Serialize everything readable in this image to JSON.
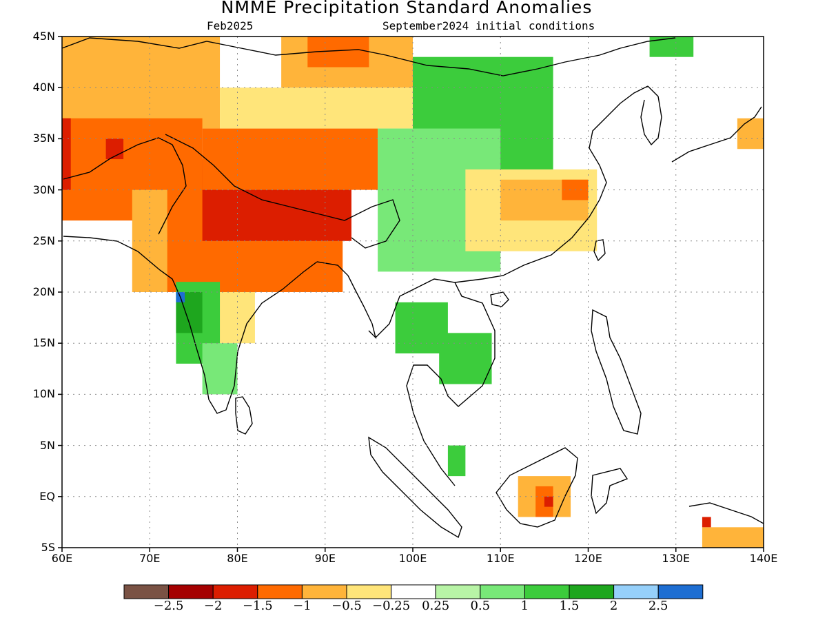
{
  "title": "NMME Precipitation Standard Anomalies",
  "valid_month": "Feb2025",
  "initial_conditions": "September2024 initial conditions",
  "map": {
    "lon_range": [
      60,
      140
    ],
    "lat_range": [
      -5,
      45
    ],
    "lat_ticks": [
      {
        "value": 45,
        "label": "45N"
      },
      {
        "value": 40,
        "label": "40N"
      },
      {
        "value": 35,
        "label": "35N"
      },
      {
        "value": 30,
        "label": "30N"
      },
      {
        "value": 25,
        "label": "25N"
      },
      {
        "value": 20,
        "label": "20N"
      },
      {
        "value": 15,
        "label": "15N"
      },
      {
        "value": 10,
        "label": "10N"
      },
      {
        "value": 5,
        "label": "5N"
      },
      {
        "value": 0,
        "label": "EQ"
      },
      {
        "value": -5,
        "label": "5S"
      }
    ],
    "lon_ticks": [
      {
        "value": 60,
        "label": "60E"
      },
      {
        "value": 70,
        "label": "70E"
      },
      {
        "value": 80,
        "label": "80E"
      },
      {
        "value": 90,
        "label": "90E"
      },
      {
        "value": 100,
        "label": "100E"
      },
      {
        "value": 110,
        "label": "110E"
      },
      {
        "value": 120,
        "label": "120E"
      },
      {
        "value": 130,
        "label": "130E"
      },
      {
        "value": 140,
        "label": "140E"
      }
    ],
    "anomaly_regions": [
      {
        "value": -1.0,
        "lon": [
          60,
          78
        ],
        "lat": [
          36,
          45
        ]
      },
      {
        "value": -1.5,
        "lon": [
          60,
          76
        ],
        "lat": [
          27,
          37
        ]
      },
      {
        "value": -2.0,
        "lon": [
          65,
          67
        ],
        "lat": [
          33,
          35
        ]
      },
      {
        "value": -2.0,
        "lon": [
          60,
          61
        ],
        "lat": [
          30,
          37
        ]
      },
      {
        "value": -1.0,
        "lon": [
          68,
          80
        ],
        "lat": [
          20,
          30
        ]
      },
      {
        "value": -1.5,
        "lon": [
          72,
          92
        ],
        "lat": [
          20,
          32
        ]
      },
      {
        "value": -2.0,
        "lon": [
          76,
          93
        ],
        "lat": [
          25,
          33
        ]
      },
      {
        "value": -1.5,
        "lon": [
          76,
          96
        ],
        "lat": [
          30,
          36
        ]
      },
      {
        "value": -0.5,
        "lon": [
          78,
          100
        ],
        "lat": [
          36,
          40
        ]
      },
      {
        "value": -1.0,
        "lon": [
          85,
          100
        ],
        "lat": [
          40,
          45
        ]
      },
      {
        "value": -1.5,
        "lon": [
          88,
          95
        ],
        "lat": [
          42,
          45
        ]
      },
      {
        "value": -0.5,
        "lon": [
          76,
          82
        ],
        "lat": [
          15,
          20
        ]
      },
      {
        "value": 1.0,
        "lon": [
          73,
          78
        ],
        "lat": [
          13,
          21
        ]
      },
      {
        "value": 1.5,
        "lon": [
          73,
          76
        ],
        "lat": [
          16,
          20
        ]
      },
      {
        "value": 2.5,
        "lon": [
          73,
          74
        ],
        "lat": [
          19,
          20
        ]
      },
      {
        "value": 0.5,
        "lon": [
          76,
          80
        ],
        "lat": [
          10,
          15
        ]
      },
      {
        "value": 1.0,
        "lon": [
          100,
          116
        ],
        "lat": [
          30,
          43
        ]
      },
      {
        "value": 0.5,
        "lon": [
          96,
          110
        ],
        "lat": [
          22,
          36
        ]
      },
      {
        "value": -0.5,
        "lon": [
          106,
          121
        ],
        "lat": [
          24,
          32
        ]
      },
      {
        "value": -1.0,
        "lon": [
          110,
          120
        ],
        "lat": [
          27,
          31
        ]
      },
      {
        "value": -1.5,
        "lon": [
          117,
          120
        ],
        "lat": [
          29,
          31
        ]
      },
      {
        "value": 1.0,
        "lon": [
          103,
          109
        ],
        "lat": [
          11,
          16
        ]
      },
      {
        "value": 1.0,
        "lon": [
          98,
          104
        ],
        "lat": [
          14,
          19
        ]
      },
      {
        "value": -1.0,
        "lon": [
          112,
          118
        ],
        "lat": [
          -2,
          2
        ]
      },
      {
        "value": -1.5,
        "lon": [
          114,
          116
        ],
        "lat": [
          -2,
          1
        ]
      },
      {
        "value": -2.0,
        "lon": [
          115,
          116
        ],
        "lat": [
          -1,
          0
        ]
      },
      {
        "value": 1.0,
        "lon": [
          104,
          106
        ],
        "lat": [
          2,
          5
        ]
      },
      {
        "value": -1.0,
        "lon": [
          133,
          140
        ],
        "lat": [
          -5,
          -3
        ]
      },
      {
        "value": -2.0,
        "lon": [
          133,
          134
        ],
        "lat": [
          -3,
          -2
        ]
      },
      {
        "value": -1.0,
        "lon": [
          137,
          140
        ],
        "lat": [
          34,
          37
        ]
      },
      {
        "value": 1.0,
        "lon": [
          127,
          132
        ],
        "lat": [
          43,
          45
        ]
      }
    ]
  },
  "colorbar": {
    "colors": [
      "#7a5244",
      "#a50000",
      "#dc1e00",
      "#ff6a00",
      "#ffb43a",
      "#ffe57a",
      "#ffffff",
      "#b8f4a6",
      "#78e878",
      "#3ccc3c",
      "#1ea61e",
      "#96d0fa",
      "#1e6ed2"
    ],
    "labels": [
      "−2.5",
      "−2",
      "−1.5",
      "−1",
      "−0.5",
      "−0.25",
      "0.25",
      "0.5",
      "1",
      "1.5",
      "2",
      "2.5"
    ]
  }
}
